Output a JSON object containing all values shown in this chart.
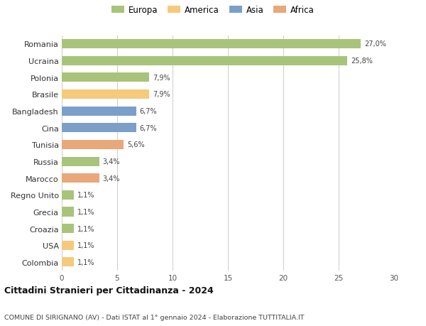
{
  "countries": [
    "Romania",
    "Ucraina",
    "Polonia",
    "Brasile",
    "Bangladesh",
    "Cina",
    "Tunisia",
    "Russia",
    "Marocco",
    "Regno Unito",
    "Grecia",
    "Croazia",
    "USA",
    "Colombia"
  ],
  "values": [
    27.0,
    25.8,
    7.9,
    7.9,
    6.7,
    6.7,
    5.6,
    3.4,
    3.4,
    1.1,
    1.1,
    1.1,
    1.1,
    1.1
  ],
  "labels": [
    "27,0%",
    "25,8%",
    "7,9%",
    "7,9%",
    "6,7%",
    "6,7%",
    "5,6%",
    "3,4%",
    "3,4%",
    "1,1%",
    "1,1%",
    "1,1%",
    "1,1%",
    "1,1%"
  ],
  "colors": [
    "#a8c47a",
    "#a8c47a",
    "#a8c47a",
    "#f5ca7a",
    "#7b9fc9",
    "#7b9fc9",
    "#e8a87a",
    "#a8c47a",
    "#e8a87a",
    "#a8c47a",
    "#a8c47a",
    "#a8c47a",
    "#f5ca7a",
    "#f5ca7a"
  ],
  "legend_labels": [
    "Europa",
    "America",
    "Asia",
    "Africa"
  ],
  "legend_colors": [
    "#a8c47a",
    "#f5ca7a",
    "#7b9fc9",
    "#e8a87a"
  ],
  "title1": "Cittadini Stranieri per Cittadinanza - 2024",
  "title2": "COMUNE DI SIRIGNANO (AV) - Dati ISTAT al 1° gennaio 2024 - Elaborazione TUTTITALIA.IT",
  "xlim": [
    0,
    30
  ],
  "xticks": [
    0,
    5,
    10,
    15,
    20,
    25,
    30
  ],
  "background_color": "#ffffff",
  "bar_height": 0.55
}
